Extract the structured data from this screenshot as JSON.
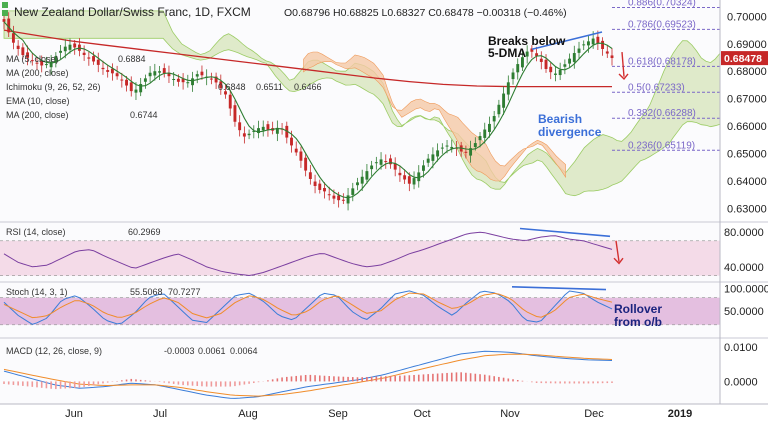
{
  "header": {
    "title": "New Zealand Dollar/Swiss Franc, 1D, FXCM",
    "ohlc": "O0.68796 H0.68825 L0.68327 C0.68478 −0.00318 (−0.46%)"
  },
  "legends": {
    "ma5": "MA (5, close)",
    "ma5_value": "0.6884",
    "ma200_top": "MA (200, close)",
    "ichimoku": "Ichimoku (9, 26, 52, 26)",
    "ichimoku_values": [
      "0.6848",
      "0.6511",
      "0.6466"
    ],
    "ema10": "EMA (10, close)",
    "ma200": "MA (200, close)",
    "ma200_value": "0.6744",
    "rsi": "RSI (14, close)",
    "rsi_value": "60.2969",
    "stoch": "Stoch (14, 3, 1)",
    "stoch_values": [
      "55.5068",
      "70.7277"
    ],
    "macd": "MACD (12, 26, close, 9)",
    "macd_values": [
      "-0.0003",
      "0.0061",
      "0.0064"
    ]
  },
  "annotations": {
    "breaks": [
      "Breaks below",
      "5-DMA"
    ],
    "bearish": [
      "Bearish",
      "divergence"
    ],
    "rollover": [
      "Rollover",
      "from o/b"
    ]
  },
  "colors": {
    "candle_up": "#2e7d32",
    "candle_down": "#c62828",
    "ma5": "#2e7d32",
    "ma200": "#c62828",
    "cloud": "#c8dca0",
    "cloud_bear": "#f5c9a6",
    "fib": "#7b68c8",
    "rsi_band": "#f4dbe8",
    "stoch_band": "#e4bfe0",
    "rsi_line": "#7b3fa0",
    "stoch_k": "#3b7dd8",
    "stoch_d": "#f08c2a",
    "macd_line": "#3b7dd8",
    "macd_signal": "#f08c2a",
    "divergence": "#3b6fd8",
    "arrow": "#d32f2f"
  },
  "chart_data": {
    "type": "candlestick",
    "x_labels": [
      "Jun",
      "Jul",
      "Aug",
      "Sep",
      "Oct",
      "Nov",
      "Dec",
      "2019"
    ],
    "price_axis": {
      "ticks": [
        "0.70000",
        "0.69000",
        "0.68000",
        "0.67000",
        "0.66000",
        "0.65000",
        "0.64000",
        "0.63000"
      ],
      "range": [
        0.6265,
        0.7045
      ],
      "last_price": "0.68478"
    },
    "fib_levels": [
      {
        "label": "0.886(0.70324)",
        "value": 0.70324
      },
      {
        "label": "0.786(0.69523)",
        "value": 0.69523
      },
      {
        "label": "0.618(0.68178)",
        "value": 0.68178
      },
      {
        "label": "0.5(0.67233)",
        "value": 0.67233
      },
      {
        "label": "0.382(0.66288)",
        "value": 0.66288
      },
      {
        "label": "0.236(0.65119)",
        "value": 0.65119
      }
    ],
    "close_path": [
      0.698,
      0.6905,
      0.686,
      0.684,
      0.682,
      0.683,
      0.687,
      0.69,
      0.688,
      0.685,
      0.683,
      0.68,
      0.679,
      0.676,
      0.672,
      0.676,
      0.68,
      0.68,
      0.678,
      0.676,
      0.676,
      0.679,
      0.678,
      0.676,
      0.672,
      0.662,
      0.656,
      0.658,
      0.66,
      0.658,
      0.66,
      0.654,
      0.649,
      0.642,
      0.637,
      0.636,
      0.633,
      0.633,
      0.638,
      0.642,
      0.646,
      0.648,
      0.646,
      0.642,
      0.639,
      0.643,
      0.648,
      0.651,
      0.653,
      0.652,
      0.65,
      0.653,
      0.658,
      0.662,
      0.67,
      0.678,
      0.684,
      0.688,
      0.685,
      0.68,
      0.679,
      0.683,
      0.687,
      0.69,
      0.692,
      0.688,
      0.6848
    ],
    "ma200_path": [
      0.695,
      0.693,
      0.691,
      0.6895,
      0.688,
      0.6865,
      0.685,
      0.6835,
      0.682,
      0.6805,
      0.679,
      0.6775,
      0.6762,
      0.6752,
      0.6746,
      0.6744,
      0.6744,
      0.6744,
      0.6744
    ],
    "rsi_axis": {
      "ticks": [
        "80.0000",
        "40.0000"
      ],
      "range": [
        25,
        88
      ],
      "band": [
        30,
        70
      ]
    },
    "rsi_path": [
      55,
      45,
      40,
      42,
      50,
      58,
      60,
      52,
      45,
      38,
      44,
      50,
      55,
      48,
      40,
      35,
      32,
      30,
      34,
      40,
      46,
      52,
      56,
      50,
      44,
      40,
      42,
      48,
      55,
      60,
      66,
      72,
      78,
      80,
      76,
      72,
      70,
      74,
      76,
      72,
      70,
      65,
      60
    ],
    "stoch_axis": {
      "ticks": [
        "100.0000",
        "50.0000"
      ],
      "range": [
        -5,
        108
      ],
      "band": [
        20,
        80
      ]
    },
    "stoch_k_path": [
      70,
      40,
      20,
      35,
      75,
      85,
      60,
      30,
      20,
      45,
      80,
      90,
      60,
      30,
      25,
      55,
      85,
      90,
      70,
      40,
      30,
      60,
      90,
      85,
      50,
      30,
      55,
      88,
      95,
      85,
      60,
      40,
      70,
      95,
      90,
      70,
      30,
      25,
      60,
      95,
      90,
      70,
      55
    ],
    "stoch_d_path": [
      65,
      50,
      35,
      40,
      60,
      75,
      65,
      45,
      35,
      45,
      65,
      80,
      70,
      45,
      35,
      45,
      70,
      85,
      75,
      55,
      40,
      50,
      75,
      85,
      65,
      45,
      50,
      75,
      90,
      88,
      70,
      55,
      65,
      85,
      90,
      78,
      50,
      35,
      50,
      80,
      88,
      78,
      70
    ],
    "macd_axis": {
      "ticks": [
        "0.0100",
        "0.0000"
      ],
      "range": [
        -0.006,
        0.0115
      ]
    },
    "macd_path": [
      0.003,
      0.001,
      -0.001,
      -0.002,
      -0.0015,
      -0.0005,
      -0.001,
      -0.0025,
      -0.004,
      -0.005,
      -0.0045,
      -0.003,
      -0.0015,
      -0.0005,
      0.0005,
      0.002,
      0.004,
      0.006,
      0.008,
      0.0088,
      0.0085,
      0.0075,
      0.0068,
      0.0063,
      0.0061
    ],
    "signal_path": [
      0.0035,
      0.002,
      0.0005,
      -0.0008,
      -0.0012,
      -0.001,
      -0.001,
      -0.0018,
      -0.003,
      -0.004,
      -0.0043,
      -0.0038,
      -0.0028,
      -0.0015,
      -0.0003,
      0.001,
      0.0028,
      0.0045,
      0.0062,
      0.0075,
      0.008,
      0.0078,
      0.0072,
      0.0067,
      0.0064
    ]
  }
}
